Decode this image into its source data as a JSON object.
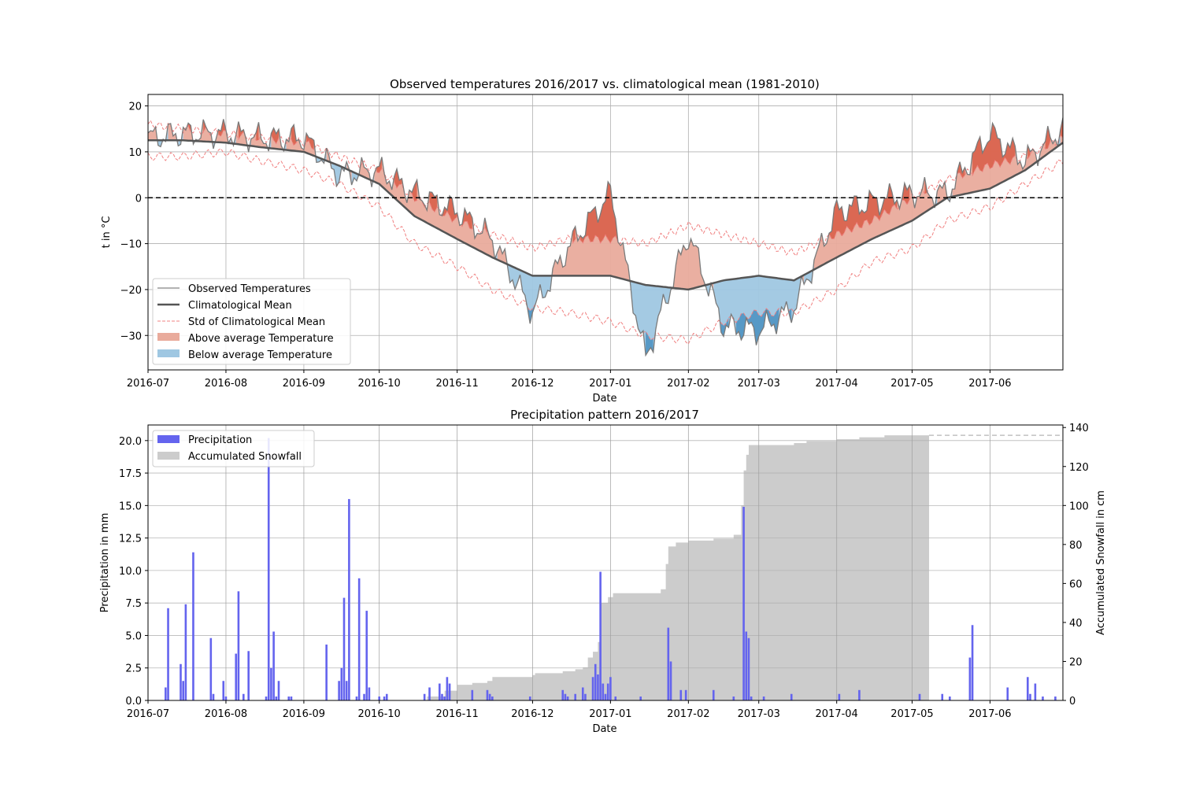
{
  "chart_data": [
    {
      "type": "line",
      "title": "Observed temperatures 2016/2017 vs. climatological mean (1981-2010)",
      "xlabel": "Date",
      "ylabel": "t in °C",
      "x_ticks": [
        "2016-07",
        "2016-08",
        "2016-09",
        "2016-10",
        "2016-11",
        "2016-12",
        "2017-01",
        "2017-02",
        "2017-03",
        "2017-04",
        "2017-05",
        "2017-06"
      ],
      "y_ticks": [
        "20",
        "10",
        "0",
        "−10",
        "−20",
        "−30"
      ],
      "ylim": [
        -37.5,
        22.5
      ],
      "grid": true,
      "zero_line": true,
      "legend_position": "lower-left",
      "legend": [
        {
          "label": "Observed Temperatures",
          "kind": "line",
          "color": "#999999"
        },
        {
          "label": "Climatological Mean",
          "kind": "line",
          "color": "#555555"
        },
        {
          "label": "Std of Climatological Mean",
          "kind": "dashed",
          "color": "#f08080"
        },
        {
          "label": "Above average Temperature",
          "kind": "fill",
          "color": "#e9ab9c"
        },
        {
          "label": "Below average Temperature",
          "kind": "fill",
          "color": "#9fc7e2"
        }
      ],
      "colors": {
        "above": "#e9ab9c",
        "above_strong": "#d9604a",
        "below": "#9fc7e2",
        "below_strong": "#4f93c2",
        "std": "#f08080",
        "mean": "#555555",
        "observed": "#7a7a7a"
      },
      "dates": [
        "2016-07-01",
        "2016-07-15",
        "2016-08-01",
        "2016-08-15",
        "2016-09-01",
        "2016-09-15",
        "2016-10-01",
        "2016-10-15",
        "2016-11-01",
        "2016-11-15",
        "2016-12-01",
        "2016-12-15",
        "2017-01-01",
        "2017-01-15",
        "2017-02-01",
        "2017-02-15",
        "2017-03-01",
        "2017-03-15",
        "2017-04-01",
        "2017-04-15",
        "2017-05-01",
        "2017-05-15",
        "2017-06-01",
        "2017-06-15",
        "2017-06-30"
      ],
      "mean": [
        12.5,
        12.5,
        12,
        11,
        10,
        7,
        3,
        -4,
        -9,
        -13,
        -17,
        -17,
        -17,
        -19,
        -20,
        -18,
        -17,
        -18,
        -13,
        -9,
        -5,
        0,
        2,
        6,
        12
      ],
      "observed": [
        13,
        14,
        14,
        13,
        13,
        5,
        6,
        1,
        -3,
        -9,
        -25,
        -11,
        1,
        -35,
        -8,
        -28,
        -29,
        -24,
        -3,
        -1,
        1,
        1,
        14,
        8,
        15
      ],
      "std_upper": [
        16,
        15,
        14,
        13,
        12,
        9,
        6,
        0,
        -5,
        -8,
        -11,
        -9,
        -9,
        -10,
        -6,
        -8,
        -10,
        -12,
        -8,
        -5,
        0,
        4,
        7,
        9,
        13
      ],
      "std_lower": [
        9,
        9,
        10,
        8,
        6,
        3,
        -2,
        -10,
        -15,
        -20,
        -24,
        -25,
        -27,
        -30,
        -31,
        -27,
        -25,
        -25,
        -20,
        -14,
        -11,
        -5,
        -2,
        3,
        8
      ],
      "series": [
        {
          "name": "Observed Temperatures"
        },
        {
          "name": "Climatological Mean"
        },
        {
          "name": "Std of Climatological Mean"
        }
      ]
    },
    {
      "type": "bar",
      "title": "Precipitation pattern 2016/2017",
      "xlabel": "Date",
      "ylabel": "Precipitation in mm",
      "y2label": "Accumulated Snowfall in cm",
      "x_ticks": [
        "2016-07",
        "2016-08",
        "2016-09",
        "2016-10",
        "2016-11",
        "2016-12",
        "2017-01",
        "2017-02",
        "2017-03",
        "2017-04",
        "2017-05",
        "2017-06"
      ],
      "y_ticks": [
        "0.0",
        "2.5",
        "5.0",
        "7.5",
        "10.0",
        "12.5",
        "15.0",
        "17.5",
        "20.0"
      ],
      "y2_ticks": [
        "0",
        "20",
        "40",
        "60",
        "80",
        "100",
        "120",
        "140"
      ],
      "ylim": [
        0,
        21.2
      ],
      "y2lim": [
        0,
        141.3
      ],
      "grid": true,
      "legend_position": "upper-left",
      "legend": [
        {
          "label": "Precipitation",
          "kind": "fill",
          "color": "#6464ee"
        },
        {
          "label": "Accumulated Snowfall",
          "kind": "fill",
          "color": "#cccccc"
        }
      ],
      "colors": {
        "precip": "#6464ee",
        "snow": "#cccccc",
        "snow_dashed": "#c0c0c0"
      },
      "precipitation": [
        {
          "date": "2016-07-08",
          "value": 1.0
        },
        {
          "date": "2016-07-09",
          "value": 7.1
        },
        {
          "date": "2016-07-14",
          "value": 2.8
        },
        {
          "date": "2016-07-15",
          "value": 1.5
        },
        {
          "date": "2016-07-16",
          "value": 7.4
        },
        {
          "date": "2016-07-19",
          "value": 11.4
        },
        {
          "date": "2016-07-26",
          "value": 4.8
        },
        {
          "date": "2016-07-27",
          "value": 0.5
        },
        {
          "date": "2016-07-31",
          "value": 1.5
        },
        {
          "date": "2016-08-01",
          "value": 0.3
        },
        {
          "date": "2016-08-05",
          "value": 3.6
        },
        {
          "date": "2016-08-06",
          "value": 8.4
        },
        {
          "date": "2016-08-08",
          "value": 0.5
        },
        {
          "date": "2016-08-10",
          "value": 3.8
        },
        {
          "date": "2016-08-17",
          "value": 0.3
        },
        {
          "date": "2016-08-18",
          "value": 20.2
        },
        {
          "date": "2016-08-19",
          "value": 2.5
        },
        {
          "date": "2016-08-20",
          "value": 5.3
        },
        {
          "date": "2016-08-21",
          "value": 0.3
        },
        {
          "date": "2016-08-22",
          "value": 1.5
        },
        {
          "date": "2016-08-26",
          "value": 0.3
        },
        {
          "date": "2016-08-27",
          "value": 0.3
        },
        {
          "date": "2016-09-10",
          "value": 4.3
        },
        {
          "date": "2016-09-15",
          "value": 1.5
        },
        {
          "date": "2016-09-16",
          "value": 2.5
        },
        {
          "date": "2016-09-17",
          "value": 7.9
        },
        {
          "date": "2016-09-18",
          "value": 1.5
        },
        {
          "date": "2016-09-19",
          "value": 15.5
        },
        {
          "date": "2016-09-22",
          "value": 0.3
        },
        {
          "date": "2016-09-23",
          "value": 9.4
        },
        {
          "date": "2016-09-25",
          "value": 0.5
        },
        {
          "date": "2016-09-26",
          "value": 6.9
        },
        {
          "date": "2016-09-27",
          "value": 1.0
        },
        {
          "date": "2016-10-01",
          "value": 0.3
        },
        {
          "date": "2016-10-03",
          "value": 0.3
        },
        {
          "date": "2016-10-04",
          "value": 0.5
        },
        {
          "date": "2016-10-19",
          "value": 0.5
        },
        {
          "date": "2016-10-21",
          "value": 1.0
        },
        {
          "date": "2016-10-25",
          "value": 1.3
        },
        {
          "date": "2016-10-26",
          "value": 0.5
        },
        {
          "date": "2016-10-27",
          "value": 0.3
        },
        {
          "date": "2016-10-28",
          "value": 1.8
        },
        {
          "date": "2016-10-29",
          "value": 1.3
        },
        {
          "date": "2016-11-07",
          "value": 0.8
        },
        {
          "date": "2016-11-13",
          "value": 0.8
        },
        {
          "date": "2016-11-14",
          "value": 0.5
        },
        {
          "date": "2016-11-15",
          "value": 0.3
        },
        {
          "date": "2016-11-30",
          "value": 0.3
        },
        {
          "date": "2016-12-13",
          "value": 0.8
        },
        {
          "date": "2016-12-14",
          "value": 0.5
        },
        {
          "date": "2016-12-15",
          "value": 0.3
        },
        {
          "date": "2016-12-18",
          "value": 0.5
        },
        {
          "date": "2016-12-21",
          "value": 1.0
        },
        {
          "date": "2016-12-22",
          "value": 0.5
        },
        {
          "date": "2016-12-25",
          "value": 1.8
        },
        {
          "date": "2016-12-26",
          "value": 2.8
        },
        {
          "date": "2016-12-27",
          "value": 2.0
        },
        {
          "date": "2016-12-28",
          "value": 9.9
        },
        {
          "date": "2016-12-29",
          "value": 1.3
        },
        {
          "date": "2016-12-30",
          "value": 0.5
        },
        {
          "date": "2016-12-31",
          "value": 1.3
        },
        {
          "date": "2017-01-01",
          "value": 1.8
        },
        {
          "date": "2017-01-03",
          "value": 0.3
        },
        {
          "date": "2017-01-13",
          "value": 0.3
        },
        {
          "date": "2017-01-24",
          "value": 5.6
        },
        {
          "date": "2017-01-25",
          "value": 3.0
        },
        {
          "date": "2017-01-29",
          "value": 0.8
        },
        {
          "date": "2017-01-31",
          "value": 0.8
        },
        {
          "date": "2017-02-11",
          "value": 0.8
        },
        {
          "date": "2017-02-19",
          "value": 0.3
        },
        {
          "date": "2017-02-23",
          "value": 14.9
        },
        {
          "date": "2017-02-24",
          "value": 5.3
        },
        {
          "date": "2017-02-25",
          "value": 4.8
        },
        {
          "date": "2017-02-26",
          "value": 0.3
        },
        {
          "date": "2017-03-03",
          "value": 0.3
        },
        {
          "date": "2017-03-14",
          "value": 0.5
        },
        {
          "date": "2017-04-02",
          "value": 0.5
        },
        {
          "date": "2017-04-10",
          "value": 0.8
        },
        {
          "date": "2017-05-04",
          "value": 0.5
        },
        {
          "date": "2017-05-13",
          "value": 0.5
        },
        {
          "date": "2017-05-16",
          "value": 0.3
        },
        {
          "date": "2017-05-24",
          "value": 3.3
        },
        {
          "date": "2017-05-25",
          "value": 5.8
        },
        {
          "date": "2017-06-08",
          "value": 1.0
        },
        {
          "date": "2017-06-16",
          "value": 1.8
        },
        {
          "date": "2017-06-17",
          "value": 0.5
        },
        {
          "date": "2017-06-19",
          "value": 1.3
        },
        {
          "date": "2017-06-22",
          "value": 0.3
        },
        {
          "date": "2017-06-27",
          "value": 0.3
        }
      ],
      "snowfall": [
        {
          "date": "2016-10-05",
          "value": 0
        },
        {
          "date": "2016-10-20",
          "value": 2
        },
        {
          "date": "2016-10-27",
          "value": 5
        },
        {
          "date": "2016-11-01",
          "value": 8
        },
        {
          "date": "2016-11-06",
          "value": 8
        },
        {
          "date": "2016-11-07",
          "value": 9
        },
        {
          "date": "2016-11-13",
          "value": 10
        },
        {
          "date": "2016-11-15",
          "value": 12
        },
        {
          "date": "2016-12-01",
          "value": 13
        },
        {
          "date": "2016-12-02",
          "value": 14
        },
        {
          "date": "2016-12-13",
          "value": 15
        },
        {
          "date": "2016-12-18",
          "value": 16
        },
        {
          "date": "2016-12-21",
          "value": 17
        },
        {
          "date": "2016-12-23",
          "value": 22
        },
        {
          "date": "2016-12-25",
          "value": 25
        },
        {
          "date": "2016-12-27",
          "value": 30
        },
        {
          "date": "2016-12-28",
          "value": 50
        },
        {
          "date": "2016-12-31",
          "value": 53
        },
        {
          "date": "2017-01-02",
          "value": 55
        },
        {
          "date": "2017-01-20",
          "value": 55
        },
        {
          "date": "2017-01-21",
          "value": 57
        },
        {
          "date": "2017-01-23",
          "value": 70
        },
        {
          "date": "2017-01-24",
          "value": 79
        },
        {
          "date": "2017-01-27",
          "value": 81
        },
        {
          "date": "2017-02-01",
          "value": 82
        },
        {
          "date": "2017-02-10",
          "value": 82
        },
        {
          "date": "2017-02-11",
          "value": 83
        },
        {
          "date": "2017-02-18",
          "value": 83
        },
        {
          "date": "2017-02-19",
          "value": 85
        },
        {
          "date": "2017-02-21",
          "value": 85
        },
        {
          "date": "2017-02-22",
          "value": 100
        },
        {
          "date": "2017-02-23",
          "value": 118
        },
        {
          "date": "2017-02-24",
          "value": 126
        },
        {
          "date": "2017-02-25",
          "value": 131
        },
        {
          "date": "2017-03-01",
          "value": 131
        },
        {
          "date": "2017-03-15",
          "value": 132
        },
        {
          "date": "2017-03-20",
          "value": 133
        },
        {
          "date": "2017-03-31",
          "value": 133
        },
        {
          "date": "2017-04-01",
          "value": 134
        },
        {
          "date": "2017-04-10",
          "value": 135
        },
        {
          "date": "2017-04-20",
          "value": 136
        },
        {
          "date": "2017-05-04",
          "value": 136
        }
      ],
      "snowfall_final": {
        "date": "2017-06-30",
        "value": 136
      }
    }
  ]
}
